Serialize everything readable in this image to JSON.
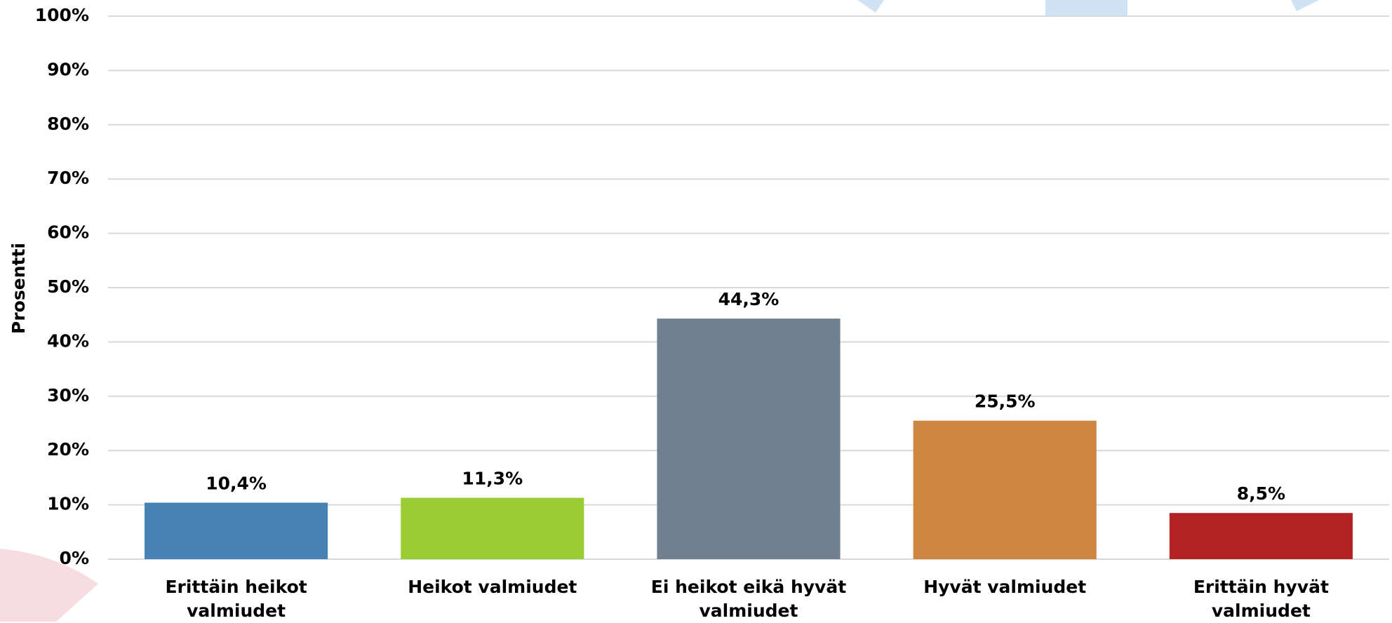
{
  "chart_data": {
    "type": "bar",
    "y_label": "Prosentti",
    "categories": [
      "Erittäin heikot valmiudet",
      "Heikot valmiudet",
      "Ei heikot eikä hyvät valmiudet",
      "Hyvät valmiudet",
      "Erittäin hyvät valmiudet"
    ],
    "values": [
      10.4,
      11.3,
      44.3,
      25.5,
      8.5
    ],
    "value_labels": [
      "10,4%",
      "11,3%",
      "44,3%",
      "25,5%",
      "8,5%"
    ],
    "colors": [
      "#4682b4",
      "#9acd32",
      "#708090",
      "#cd853f",
      "#b22222"
    ],
    "ylim": [
      0,
      100
    ],
    "yticks": [
      {
        "value": 0,
        "label": "0%"
      },
      {
        "value": 10,
        "label": "10%"
      },
      {
        "value": 20,
        "label": "20%"
      },
      {
        "value": 30,
        "label": "30%"
      },
      {
        "value": 40,
        "label": "40%"
      },
      {
        "value": 50,
        "label": "50%"
      },
      {
        "value": 60,
        "label": "60%"
      },
      {
        "value": 70,
        "label": "70%"
      },
      {
        "value": 80,
        "label": "80%"
      },
      {
        "value": 90,
        "label": "90%"
      },
      {
        "value": 100,
        "label": "100%"
      }
    ],
    "grid": true
  }
}
